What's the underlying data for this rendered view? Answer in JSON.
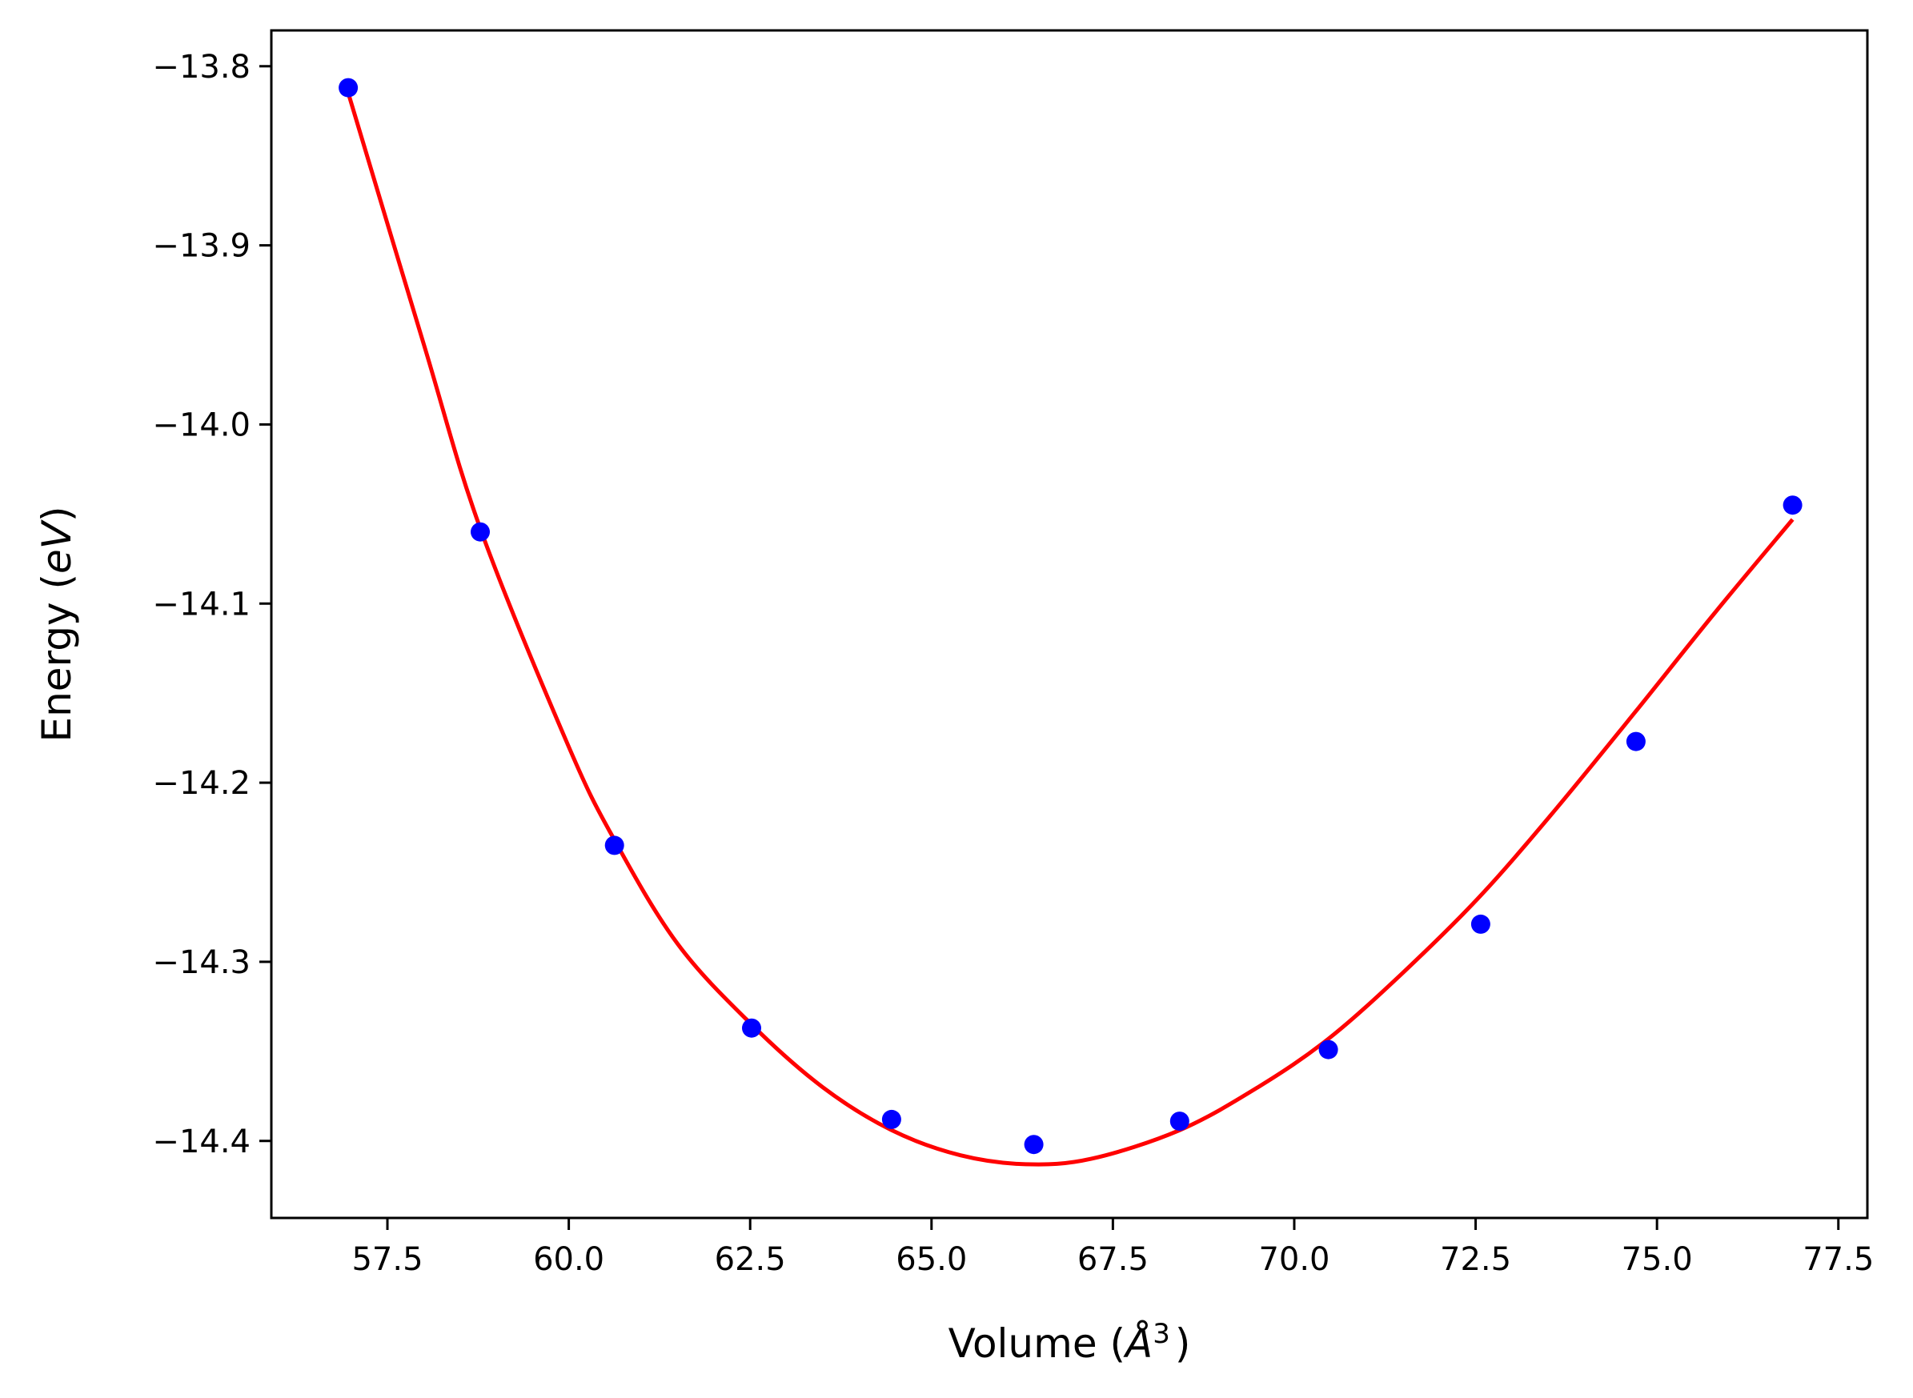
{
  "chart_data": {
    "type": "scatter",
    "xlabel": "Volume (",
    "xlabel_symbol": "Å",
    "xlabel_exp": "3",
    "xlabel_close": ")",
    "ylabel": "Energy (",
    "ylabel_unit": "eV",
    "ylabel_close": ")",
    "xlim": [
      55.9,
      77.9
    ],
    "ylim": [
      -14.443,
      -13.78
    ],
    "x_ticks": [
      57.5,
      60.0,
      62.5,
      65.0,
      67.5,
      70.0,
      72.5,
      75.0,
      77.5
    ],
    "x_tick_labels": [
      "57.5",
      "60.0",
      "62.5",
      "65.0",
      "67.5",
      "70.0",
      "72.5",
      "75.0",
      "77.5"
    ],
    "y_ticks": [
      -13.8,
      -13.9,
      -14.0,
      -14.1,
      -14.2,
      -14.3,
      -14.4
    ],
    "y_tick_labels": [
      "−13.8",
      "−13.9",
      "−14.0",
      "−14.1",
      "−14.2",
      "−14.3",
      "−14.4"
    ],
    "grid": false,
    "series": [
      {
        "kind": "points",
        "color": "#0000ff",
        "x": [
          56.96,
          58.78,
          60.63,
          62.52,
          64.45,
          66.41,
          68.42,
          70.47,
          72.57,
          74.71,
          76.87
        ],
        "y": [
          -13.812,
          -14.06,
          -14.235,
          -14.337,
          -14.388,
          -14.402,
          -14.389,
          -14.349,
          -14.279,
          -14.177,
          -14.045
        ]
      },
      {
        "kind": "fit-line",
        "color": "#ff0000",
        "x": [
          56.96,
          58.0,
          58.78,
          60.0,
          60.63,
          61.5,
          62.52,
          63.5,
          64.45,
          65.4,
          66.3,
          67.2,
          68.42,
          69.5,
          70.47,
          71.5,
          72.57,
          73.6,
          74.71,
          75.8,
          76.87
        ],
        "y": [
          -13.815,
          -13.955,
          -14.058,
          -14.18,
          -14.232,
          -14.29,
          -14.335,
          -14.37,
          -14.394,
          -14.408,
          -14.413,
          -14.41,
          -14.394,
          -14.37,
          -14.343,
          -14.306,
          -14.263,
          -14.215,
          -14.16,
          -14.105,
          -14.053
        ]
      }
    ]
  }
}
